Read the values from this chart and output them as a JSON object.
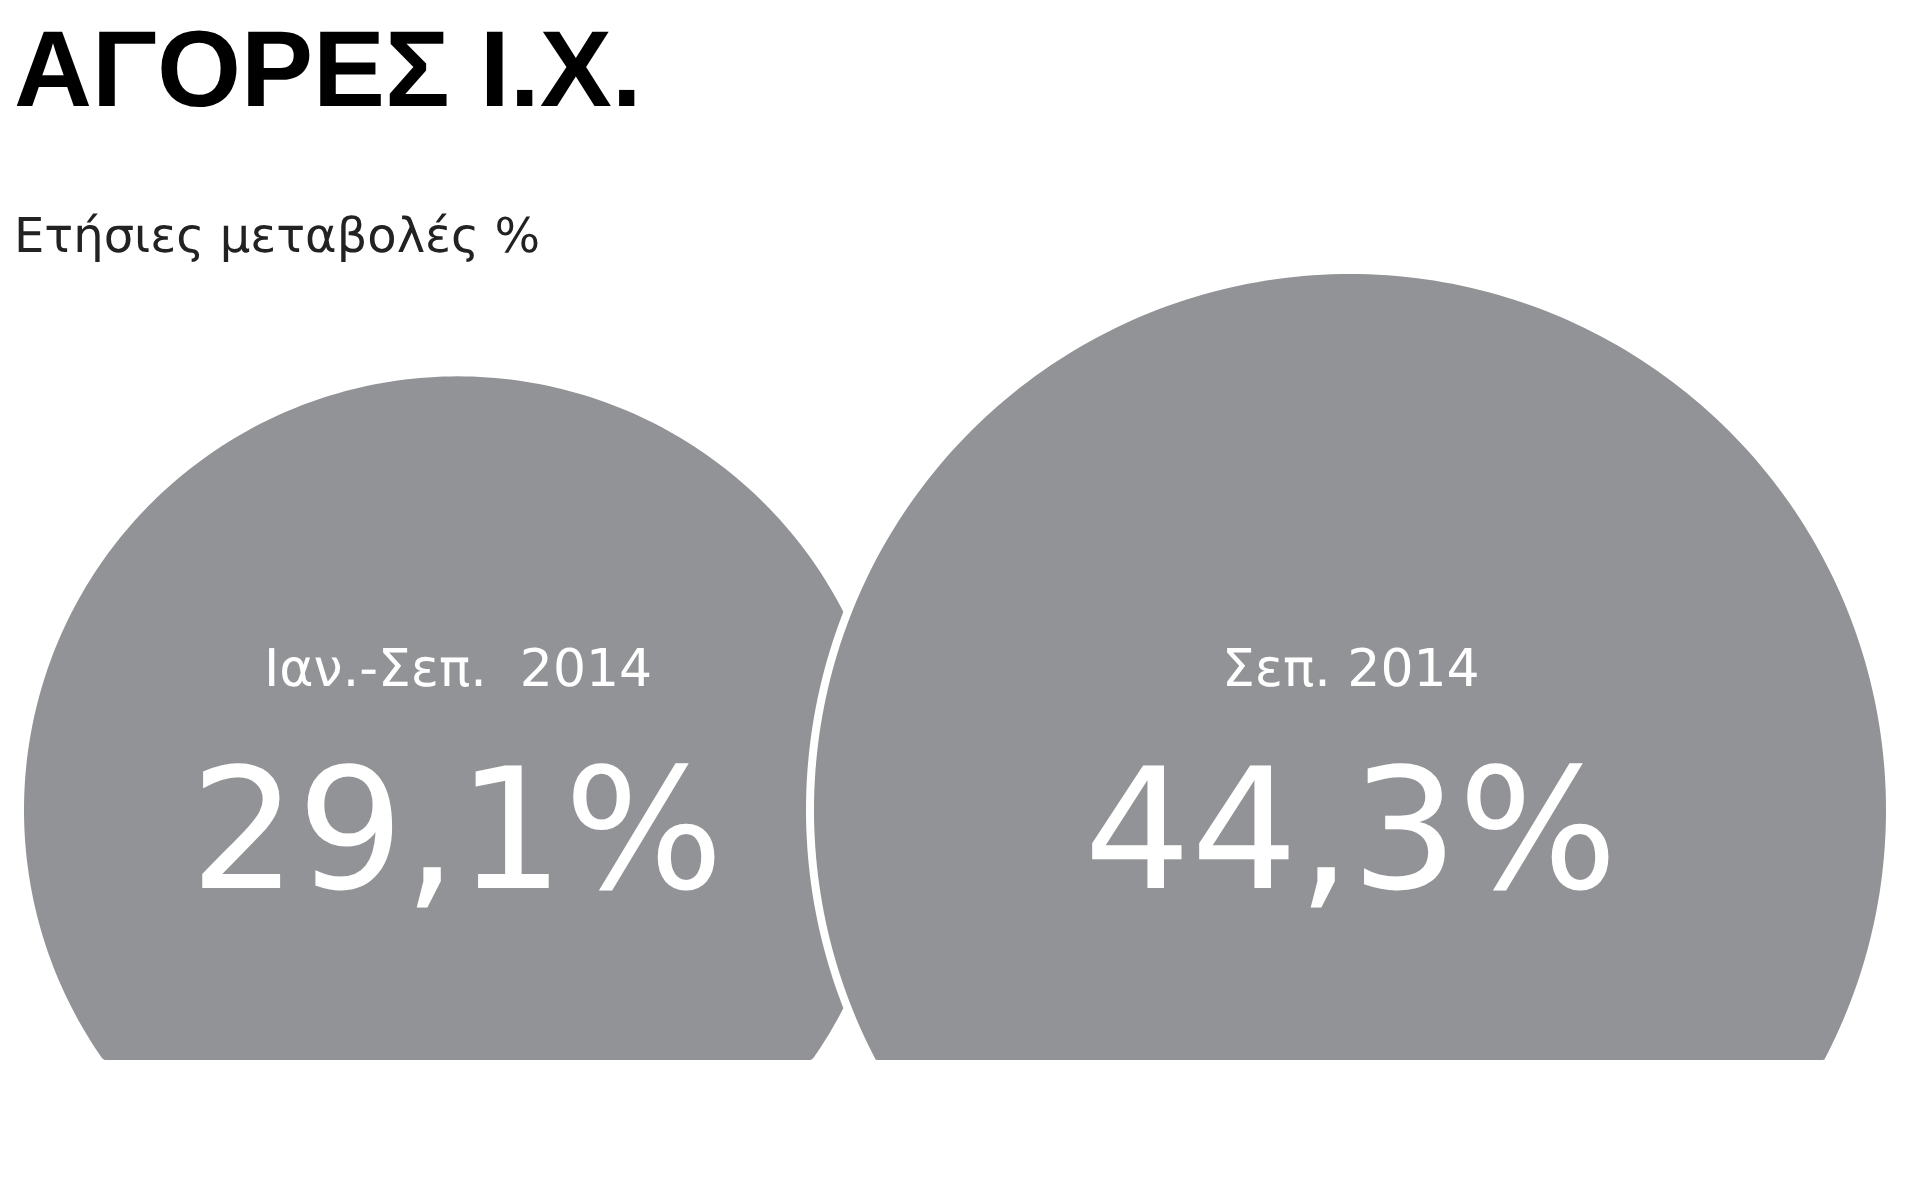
{
  "chart_data": {
    "type": "other",
    "title": "ΑΓΟΡΕΣ Ι.Χ.",
    "subtitle": "Ετήσιες μεταβολές %",
    "categories": [
      "Ιαν.-Σεπ.  2014",
      "Σεπ. 2014"
    ],
    "values": [
      29.1,
      44.3
    ],
    "value_labels": [
      "29,1%",
      "44,3%"
    ],
    "colors": [
      "#929396",
      "#929396"
    ]
  }
}
